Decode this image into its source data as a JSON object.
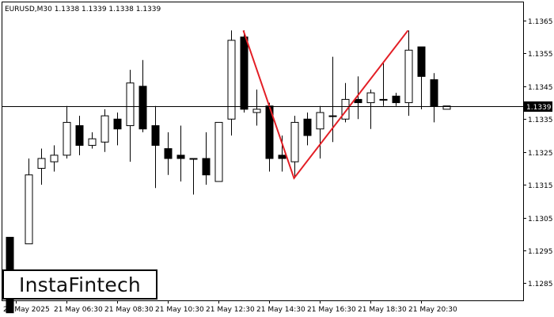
{
  "header": {
    "symbol_line": "EURUSD,M30  1.1338 1.1339 1.1338 1.1339"
  },
  "logo": {
    "text": "InstaFintech"
  },
  "price_label": "1.1339",
  "colors": {
    "pattern_line": "#e31f26",
    "bull_fill": "#ffffff",
    "bear_fill": "#000000",
    "background": "#ffffff"
  },
  "chart_data": {
    "type": "candlestick",
    "symbol": "EURUSD",
    "timeframe": "M30",
    "ohlc_header": {
      "open": 1.1338,
      "high": 1.1339,
      "low": 1.1338,
      "close": 1.1339
    },
    "current_price": 1.1339,
    "ylim": [
      1.128,
      1.1368
    ],
    "y_ticks": [
      "1.1285",
      "1.1295",
      "1.1305",
      "1.1315",
      "1.1325",
      "1.1335",
      "1.1345",
      "1.1355",
      "1.1365"
    ],
    "x_ticks": [
      {
        "label": "21 May 2025",
        "index": 0
      },
      {
        "label": "21 May 06:30",
        "index": 4
      },
      {
        "label": "21 May 08:30",
        "index": 8
      },
      {
        "label": "21 May 10:30",
        "index": 12
      },
      {
        "label": "21 May 12:30",
        "index": 16
      },
      {
        "label": "21 May 14:30",
        "index": 20
      },
      {
        "label": "21 May 16:30",
        "index": 24
      },
      {
        "label": "21 May 18:30",
        "index": 28
      },
      {
        "label": "21 May 20:30",
        "index": 32
      }
    ],
    "candles": [
      {
        "i": -0.5,
        "o": 1.1299,
        "h": 1.1299,
        "l": 1.1276,
        "c": 1.1276
      },
      {
        "i": 1,
        "o": 1.1297,
        "h": 1.1323,
        "l": 1.1297,
        "c": 1.1318
      },
      {
        "i": 2,
        "o": 1.132,
        "h": 1.1326,
        "l": 1.1315,
        "c": 1.1323
      },
      {
        "i": 3,
        "o": 1.1322,
        "h": 1.1327,
        "l": 1.1319,
        "c": 1.1324
      },
      {
        "i": 4,
        "o": 1.1324,
        "h": 1.1339,
        "l": 1.1323,
        "c": 1.1334
      },
      {
        "i": 5,
        "o": 1.1333,
        "h": 1.1336,
        "l": 1.1324,
        "c": 1.1327
      },
      {
        "i": 6,
        "o": 1.1327,
        "h": 1.1331,
        "l": 1.1326,
        "c": 1.1329
      },
      {
        "i": 7,
        "o": 1.1328,
        "h": 1.1338,
        "l": 1.1325,
        "c": 1.1336
      },
      {
        "i": 8,
        "o": 1.1335,
        "h": 1.1337,
        "l": 1.1327,
        "c": 1.1332
      },
      {
        "i": 9,
        "o": 1.1333,
        "h": 1.135,
        "l": 1.1322,
        "c": 1.1346
      },
      {
        "i": 10,
        "o": 1.1345,
        "h": 1.1353,
        "l": 1.1331,
        "c": 1.1332
      },
      {
        "i": 11,
        "o": 1.1333,
        "h": 1.1339,
        "l": 1.1314,
        "c": 1.1327
      },
      {
        "i": 12,
        "o": 1.1326,
        "h": 1.1331,
        "l": 1.1318,
        "c": 1.1323
      },
      {
        "i": 13,
        "o": 1.1324,
        "h": 1.1333,
        "l": 1.1316,
        "c": 1.1323
      },
      {
        "i": 14,
        "o": 1.1323,
        "h": 1.1323,
        "l": 1.1312,
        "c": 1.1323
      },
      {
        "i": 15,
        "o": 1.1323,
        "h": 1.1331,
        "l": 1.1315,
        "c": 1.1318
      },
      {
        "i": 16,
        "o": 1.1316,
        "h": 1.1334,
        "l": 1.1316,
        "c": 1.1334
      },
      {
        "i": 17,
        "o": 1.1335,
        "h": 1.1362,
        "l": 1.133,
        "c": 1.1359
      },
      {
        "i": 18,
        "o": 1.136,
        "h": 1.1362,
        "l": 1.1337,
        "c": 1.1338
      },
      {
        "i": 19,
        "o": 1.1337,
        "h": 1.1344,
        "l": 1.1333,
        "c": 1.1338
      },
      {
        "i": 20,
        "o": 1.1339,
        "h": 1.134,
        "l": 1.1319,
        "c": 1.1323
      },
      {
        "i": 21,
        "o": 1.1324,
        "h": 1.133,
        "l": 1.1319,
        "c": 1.1323
      },
      {
        "i": 22,
        "o": 1.1322,
        "h": 1.1336,
        "l": 1.1317,
        "c": 1.1334
      },
      {
        "i": 23,
        "o": 1.1335,
        "h": 1.1337,
        "l": 1.1327,
        "c": 1.133
      },
      {
        "i": 24,
        "o": 1.1332,
        "h": 1.1339,
        "l": 1.1323,
        "c": 1.1337
      },
      {
        "i": 25,
        "o": 1.1336,
        "h": 1.1354,
        "l": 1.1328,
        "c": 1.1336
      },
      {
        "i": 26,
        "o": 1.1335,
        "h": 1.1346,
        "l": 1.1334,
        "c": 1.1341
      },
      {
        "i": 27,
        "o": 1.1341,
        "h": 1.1348,
        "l": 1.1335,
        "c": 1.134
      },
      {
        "i": 28,
        "o": 1.134,
        "h": 1.1344,
        "l": 1.1332,
        "c": 1.1343
      },
      {
        "i": 29,
        "o": 1.1341,
        "h": 1.1352,
        "l": 1.1339,
        "c": 1.1341
      },
      {
        "i": 30,
        "o": 1.1342,
        "h": 1.1343,
        "l": 1.1339,
        "c": 1.134
      },
      {
        "i": 31,
        "o": 1.134,
        "h": 1.1362,
        "l": 1.1336,
        "c": 1.1356
      },
      {
        "i": 32,
        "o": 1.1357,
        "h": 1.1357,
        "l": 1.1338,
        "c": 1.1348
      },
      {
        "i": 33,
        "o": 1.1347,
        "h": 1.1349,
        "l": 1.1334,
        "c": 1.1339
      },
      {
        "i": 34,
        "o": 1.1338,
        "h": 1.1339,
        "l": 1.1338,
        "c": 1.1339
      }
    ],
    "pattern_line": [
      {
        "i": 18,
        "price": 1.1362
      },
      {
        "i": 22,
        "price": 1.1317
      },
      {
        "i": 31,
        "price": 1.1362
      }
    ],
    "grid": false
  }
}
